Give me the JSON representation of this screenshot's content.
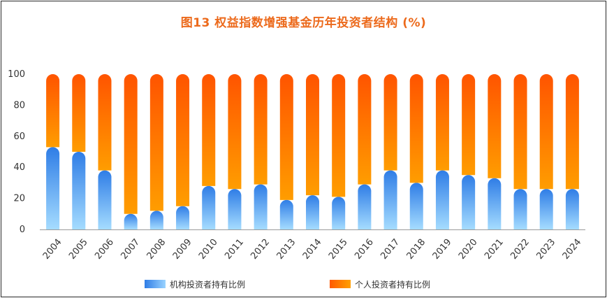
{
  "chart_data": {
    "type": "bar",
    "stacked": true,
    "title": "图13 权益指数增强基金历年投资者结构 (%)",
    "categories": [
      "2004",
      "2005",
      "2006",
      "2007",
      "2008",
      "2009",
      "2010",
      "2011",
      "2012",
      "2013",
      "2014",
      "2015",
      "2016",
      "2017",
      "2018",
      "2019",
      "2020",
      "2021",
      "2022",
      "2023",
      "2024"
    ],
    "series": [
      {
        "name": "机构投资者持有比例",
        "color": "#2f7de6",
        "values": [
          53,
          50,
          38,
          10,
          12,
          15,
          28,
          26,
          29,
          19,
          22,
          21,
          29,
          38,
          30,
          38,
          35,
          33,
          26,
          26,
          26
        ]
      },
      {
        "name": "个人投资者持有比例",
        "color": "#ff6a00",
        "values": [
          47,
          50,
          62,
          90,
          88,
          85,
          72,
          74,
          71,
          81,
          78,
          79,
          71,
          62,
          70,
          62,
          65,
          67,
          74,
          74,
          74
        ]
      }
    ],
    "ylim": [
      0,
      100
    ],
    "yticks": [
      0,
      20,
      40,
      60,
      80,
      100
    ],
    "xlabel": "",
    "ylabel": "",
    "grid": false,
    "legend_position": "bottom"
  }
}
